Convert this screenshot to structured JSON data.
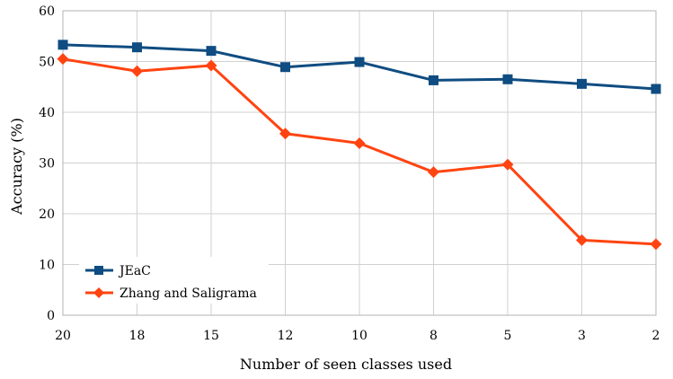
{
  "chart_data": {
    "type": "line",
    "xlabel": "Number of seen classes used",
    "ylabel": "Accuracy (%)",
    "categories": [
      "20",
      "18",
      "15",
      "12",
      "10",
      "8",
      "5",
      "3",
      "2"
    ],
    "yticks": [
      "0",
      "10",
      "20",
      "30",
      "40",
      "50",
      "60"
    ],
    "ylim": [
      0,
      60
    ],
    "grid": true,
    "legend_position": "bottom-left",
    "series": [
      {
        "name": "JEaC",
        "color": "#0f4c81",
        "marker": "square",
        "values": [
          53.3,
          52.8,
          52.1,
          48.9,
          49.9,
          46.3,
          46.5,
          45.6,
          44.6
        ]
      },
      {
        "name": "Zhang and Saligrama",
        "color": "#ff4411",
        "marker": "diamond",
        "values": [
          50.5,
          48.1,
          49.2,
          35.8,
          33.9,
          28.2,
          29.7,
          14.8,
          14.0
        ]
      }
    ]
  }
}
